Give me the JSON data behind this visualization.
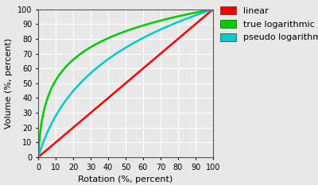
{
  "title": "",
  "xlabel": "Rotation (%, percent)",
  "ylabel": "Volume (%, percent)",
  "xlim": [
    0,
    100
  ],
  "ylim": [
    0,
    100
  ],
  "xticks": [
    0,
    10,
    20,
    30,
    40,
    50,
    60,
    70,
    80,
    90,
    100
  ],
  "yticks": [
    0,
    10,
    20,
    30,
    40,
    50,
    60,
    70,
    80,
    90,
    100
  ],
  "linear_color": "#ff0000",
  "log_color": "#00cc00",
  "pseudo_color": "#00cccc",
  "legend_labels": [
    "linear",
    "true logarithmic",
    "pseudo logarithmic"
  ],
  "legend_colors": [
    "#ff0000",
    "#00cc00",
    "#00cccc"
  ],
  "background_color": "#e8e8e8",
  "plot_bg_color": "#e8e8e8",
  "grid_color": "#ffffff",
  "linewidth": 1.8,
  "log_base": 100,
  "pseudo_log_base": 10
}
